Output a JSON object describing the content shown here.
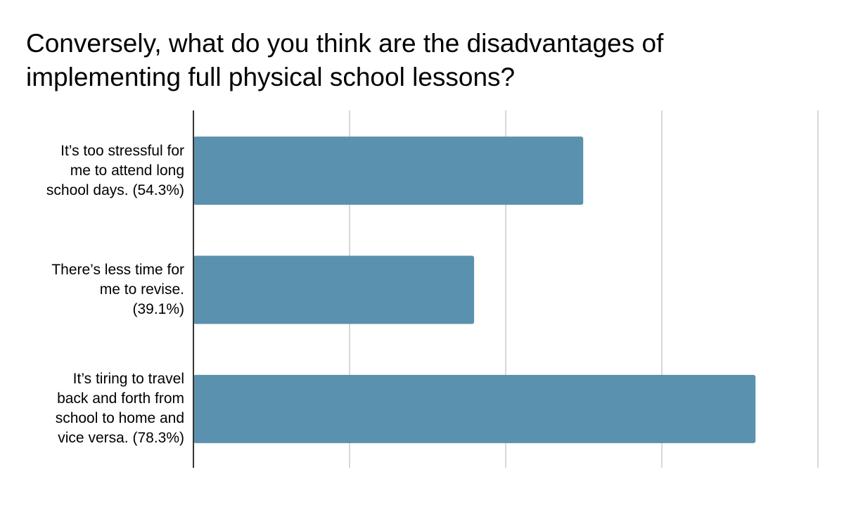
{
  "chart_data": {
    "type": "bar",
    "orientation": "horizontal",
    "title": "Conversely, what do you think are the disadvantages of implementing full physical school lessons?",
    "categories": [
      "It’s too stressful for me to attend long school days. (54.3%)",
      "There’s less time for me to revise. (39.1%)",
      "It’s tiring to travel back and forth from school to home and vice versa. (78.3%)"
    ],
    "category_lines": [
      [
        "It’s too stressful for",
        "me to attend long",
        "school days. (54.3%)"
      ],
      [
        "There’s less time for",
        "me to revise.",
        "(39.1%)"
      ],
      [
        "It’s tiring to travel",
        "back and forth from",
        "school to home and",
        "vice versa. (78.3%)"
      ]
    ],
    "values": [
      54.3,
      39.1,
      78.3
    ],
    "xlabel": "",
    "ylabel": "",
    "xlim": [
      0,
      87
    ],
    "gridlines": [
      0,
      21.75,
      43.5,
      65.25,
      87
    ],
    "grid": true,
    "tick_labels_shown": false,
    "legend": "none",
    "bar_color": "#5a91ae",
    "grid_color": "#cccccc",
    "axis_color": "#333333"
  }
}
